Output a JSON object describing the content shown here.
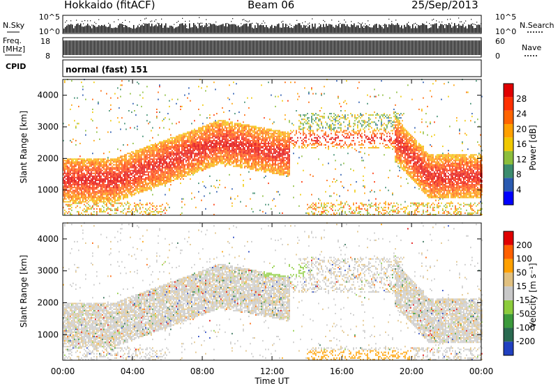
{
  "header": {
    "station": "Hokkaido (fitACF)",
    "beam": "Beam 06",
    "date": "25/Sep/2013"
  },
  "status_panel": {
    "nsky_label": "N.Sky",
    "nsky_ticks": [
      "10^5",
      "10^0"
    ],
    "nsearch_label": "N.Search",
    "freq_label_1": "Freq.",
    "freq_label_2": "[MHz]",
    "freq_ticks": [
      "18",
      "8"
    ],
    "nave_label": "Nave",
    "nave_ticks": [
      "60",
      "0"
    ],
    "cpid_label": "CPID",
    "cpid_text": "normal (fast) 151"
  },
  "colors": {
    "power_scale": [
      "#0000ff",
      "#2a5ab0",
      "#3c8c6e",
      "#8cbe3c",
      "#f0c800",
      "#ffa000",
      "#ff6400",
      "#ff3000",
      "#e00000"
    ],
    "velocity_scale": [
      "#2040c0",
      "#2a6a50",
      "#3c9a3c",
      "#8ccc3c",
      "#c8c8c8",
      "#e0c080",
      "#ffa000",
      "#ff6000",
      "#e00000"
    ]
  },
  "chart_data": [
    {
      "type": "heatmap",
      "x": [
        "00:00",
        "04:00",
        "08:00",
        "12:00",
        "16:00",
        "20:00",
        "00:00"
      ],
      "ylabel": "Slant Range [km]",
      "yticks": [
        "4000",
        "3000",
        "2000",
        "1000"
      ],
      "ylim": [
        200,
        4500
      ],
      "colorbar_label": "Power [dB]",
      "colorbar_ticks": [
        "28",
        "24",
        "20",
        "16",
        "12",
        "8",
        "4"
      ],
      "zlim": [
        0,
        30
      ]
    },
    {
      "type": "heatmap",
      "x": [
        "00:00",
        "04:00",
        "08:00",
        "12:00",
        "16:00",
        "20:00",
        "00:00"
      ],
      "xlabel": "Time UT",
      "ylabel": "Slant Range [km]",
      "yticks": [
        "4000",
        "3000",
        "2000",
        "1000"
      ],
      "ylim": [
        200,
        4500
      ],
      "colorbar_label": "Velocity [m s⁻¹]",
      "colorbar_ticks": [
        "200",
        "100",
        "50",
        "15",
        "-15",
        "-50",
        "-100",
        "-200"
      ],
      "zlim": [
        -250,
        250
      ]
    }
  ]
}
